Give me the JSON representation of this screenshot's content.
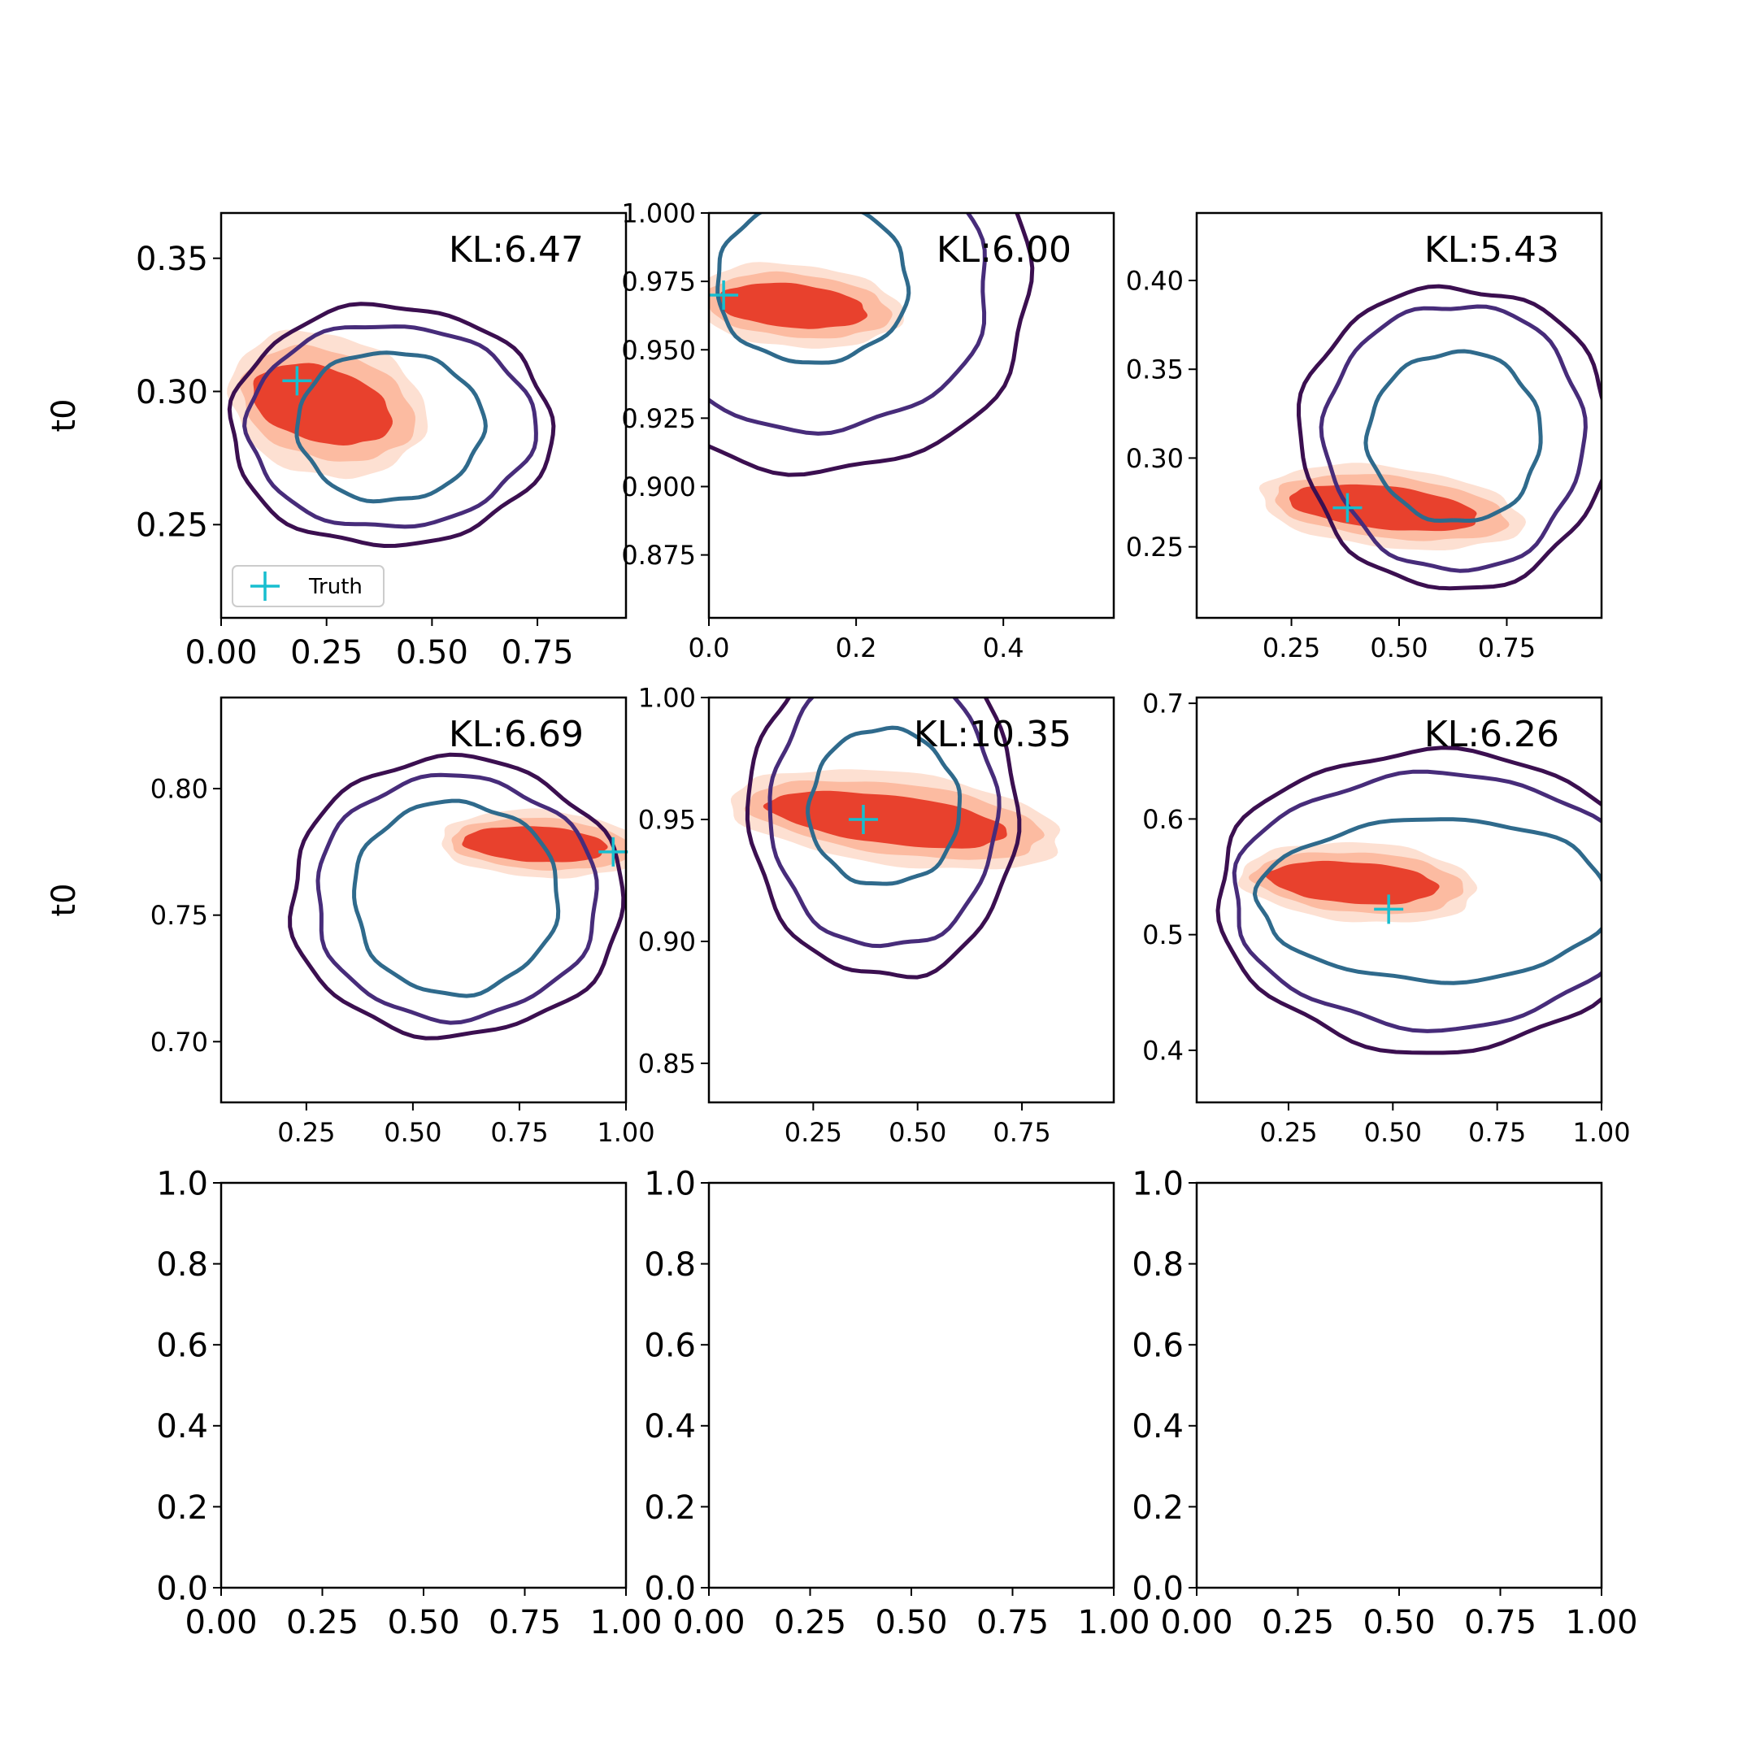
{
  "figure": {
    "ylabel": "t0",
    "legend_label": "Truth"
  },
  "colors": {
    "truth_marker": "#17becf",
    "inner_contour": "#2f6a8c",
    "middle_contour": "#472c7a",
    "outer_contour": "#3b0f50",
    "fill_dark": "#e8412d",
    "fill_light": "#fcbba1",
    "fill_lighter": "#fde0d2"
  },
  "chart_data": [
    {
      "type": "contour",
      "kl_text": "KL:6.47",
      "xlim": [
        0.0,
        0.96
      ],
      "ylim": [
        0.215,
        0.367
      ],
      "xticks": [
        "0.00",
        "0.25",
        "0.50",
        "0.75"
      ],
      "yticks": [
        "0.25",
        "0.30",
        "0.35"
      ],
      "ylabel": "t0",
      "legend": "Truth",
      "truth": [
        0.18,
        0.304
      ],
      "fill_center": [
        0.25,
        0.295
      ],
      "fill_radii": [
        0.2,
        0.014
      ],
      "fill_angle": -15,
      "ring_center": [
        0.4,
        0.287
      ],
      "ring_radii": [
        [
          0.22,
          0.028
        ],
        [
          0.34,
          0.038
        ],
        [
          0.38,
          0.045
        ]
      ]
    },
    {
      "type": "contour",
      "kl_text": "KL:6.00",
      "xlim": [
        0.0,
        0.55
      ],
      "ylim": [
        0.852,
        1.0
      ],
      "xticks": [
        "0.0",
        "0.2",
        "0.4"
      ],
      "yticks": [
        "0.875",
        "0.900",
        "0.925",
        "0.950",
        "0.975",
        "1.000"
      ],
      "ylabel": "",
      "legend": "",
      "truth": [
        0.02,
        0.97
      ],
      "fill_center": [
        0.12,
        0.966
      ],
      "fill_radii": [
        0.12,
        0.008
      ],
      "fill_angle": -5,
      "ring_center": [
        0.14,
        0.975
      ],
      "ring_radii": [
        [
          0.13,
          0.03
        ],
        [
          0.24,
          0.055
        ],
        [
          0.3,
          0.07
        ]
      ]
    },
    {
      "type": "contour",
      "kl_text": "KL:5.43",
      "xlim": [
        0.03,
        0.97
      ],
      "ylim": [
        0.21,
        0.438
      ],
      "xticks": [
        "0.25",
        "0.50",
        "0.75"
      ],
      "yticks": [
        "0.25",
        "0.30",
        "0.35",
        "0.40"
      ],
      "ylabel": "",
      "legend": "",
      "truth": [
        0.38,
        0.272
      ],
      "fill_center": [
        0.48,
        0.272
      ],
      "fill_radii": [
        0.26,
        0.012
      ],
      "fill_angle": -6,
      "ring_center": [
        0.63,
        0.312
      ],
      "ring_radii": [
        [
          0.2,
          0.048
        ],
        [
          0.3,
          0.075
        ],
        [
          0.36,
          0.085
        ]
      ]
    },
    {
      "type": "contour",
      "kl_text": "KL:6.69",
      "xlim": [
        0.05,
        1.0
      ],
      "ylim": [
        0.676,
        0.836
      ],
      "xticks": [
        "0.25",
        "0.50",
        "0.75",
        "1.00"
      ],
      "yticks": [
        "0.70",
        "0.75",
        "0.80"
      ],
      "ylabel": "t0",
      "legend": "",
      "truth": [
        0.97,
        0.775
      ],
      "fill_center": [
        0.8,
        0.778
      ],
      "fill_radii": [
        0.2,
        0.007
      ],
      "fill_angle": -3,
      "ring_center": [
        0.6,
        0.757
      ],
      "ring_radii": [
        [
          0.24,
          0.038
        ],
        [
          0.33,
          0.048
        ],
        [
          0.39,
          0.055
        ]
      ]
    },
    {
      "type": "contour",
      "kl_text": "KL:10.35",
      "xlim": [
        0.0,
        0.97
      ],
      "ylim": [
        0.834,
        1.0
      ],
      "xticks": [
        "0.25",
        "0.50",
        "0.75"
      ],
      "yticks": [
        "0.85",
        "0.90",
        "0.95",
        "1.00"
      ],
      "ylabel": "",
      "legend": "",
      "truth": [
        0.37,
        0.95
      ],
      "fill_center": [
        0.45,
        0.95
      ],
      "fill_radii": [
        0.34,
        0.01
      ],
      "fill_angle": -7,
      "ring_center": [
        0.42,
        0.955
      ],
      "ring_radii": [
        [
          0.18,
          0.032
        ],
        [
          0.27,
          0.058
        ],
        [
          0.32,
          0.07
        ]
      ]
    },
    {
      "type": "contour",
      "kl_text": "KL:6.26",
      "xlim": [
        0.03,
        1.0
      ],
      "ylim": [
        0.355,
        0.705
      ],
      "xticks": [
        "0.25",
        "0.50",
        "0.75",
        "1.00"
      ],
      "yticks": [
        "0.4",
        "0.5",
        "0.6",
        "0.7"
      ],
      "ylabel": "",
      "legend": "",
      "truth": [
        0.49,
        0.522
      ],
      "fill_center": [
        0.42,
        0.545
      ],
      "fill_radii": [
        0.24,
        0.018
      ],
      "fill_angle": -4,
      "ring_center": [
        0.6,
        0.53
      ],
      "ring_radii": [
        [
          0.42,
          0.07
        ],
        [
          0.48,
          0.11
        ],
        [
          0.52,
          0.13
        ]
      ]
    },
    {
      "type": "empty",
      "xlim": [
        0,
        1
      ],
      "ylim": [
        0,
        1
      ],
      "xticks": [
        "0.00",
        "0.25",
        "0.50",
        "0.75",
        "1.00"
      ],
      "yticks": [
        "0.0",
        "0.2",
        "0.4",
        "0.6",
        "0.8",
        "1.0"
      ]
    },
    {
      "type": "empty",
      "xlim": [
        0,
        1
      ],
      "ylim": [
        0,
        1
      ],
      "xticks": [
        "0.00",
        "0.25",
        "0.50",
        "0.75",
        "1.00"
      ],
      "yticks": [
        "0.0",
        "0.2",
        "0.4",
        "0.6",
        "0.8",
        "1.0"
      ]
    },
    {
      "type": "empty",
      "xlim": [
        0,
        1
      ],
      "ylim": [
        0,
        1
      ],
      "xticks": [
        "0.00",
        "0.25",
        "0.50",
        "0.75",
        "1.00"
      ],
      "yticks": [
        "0.0",
        "0.2",
        "0.4",
        "0.6",
        "0.8",
        "1.0"
      ]
    }
  ]
}
